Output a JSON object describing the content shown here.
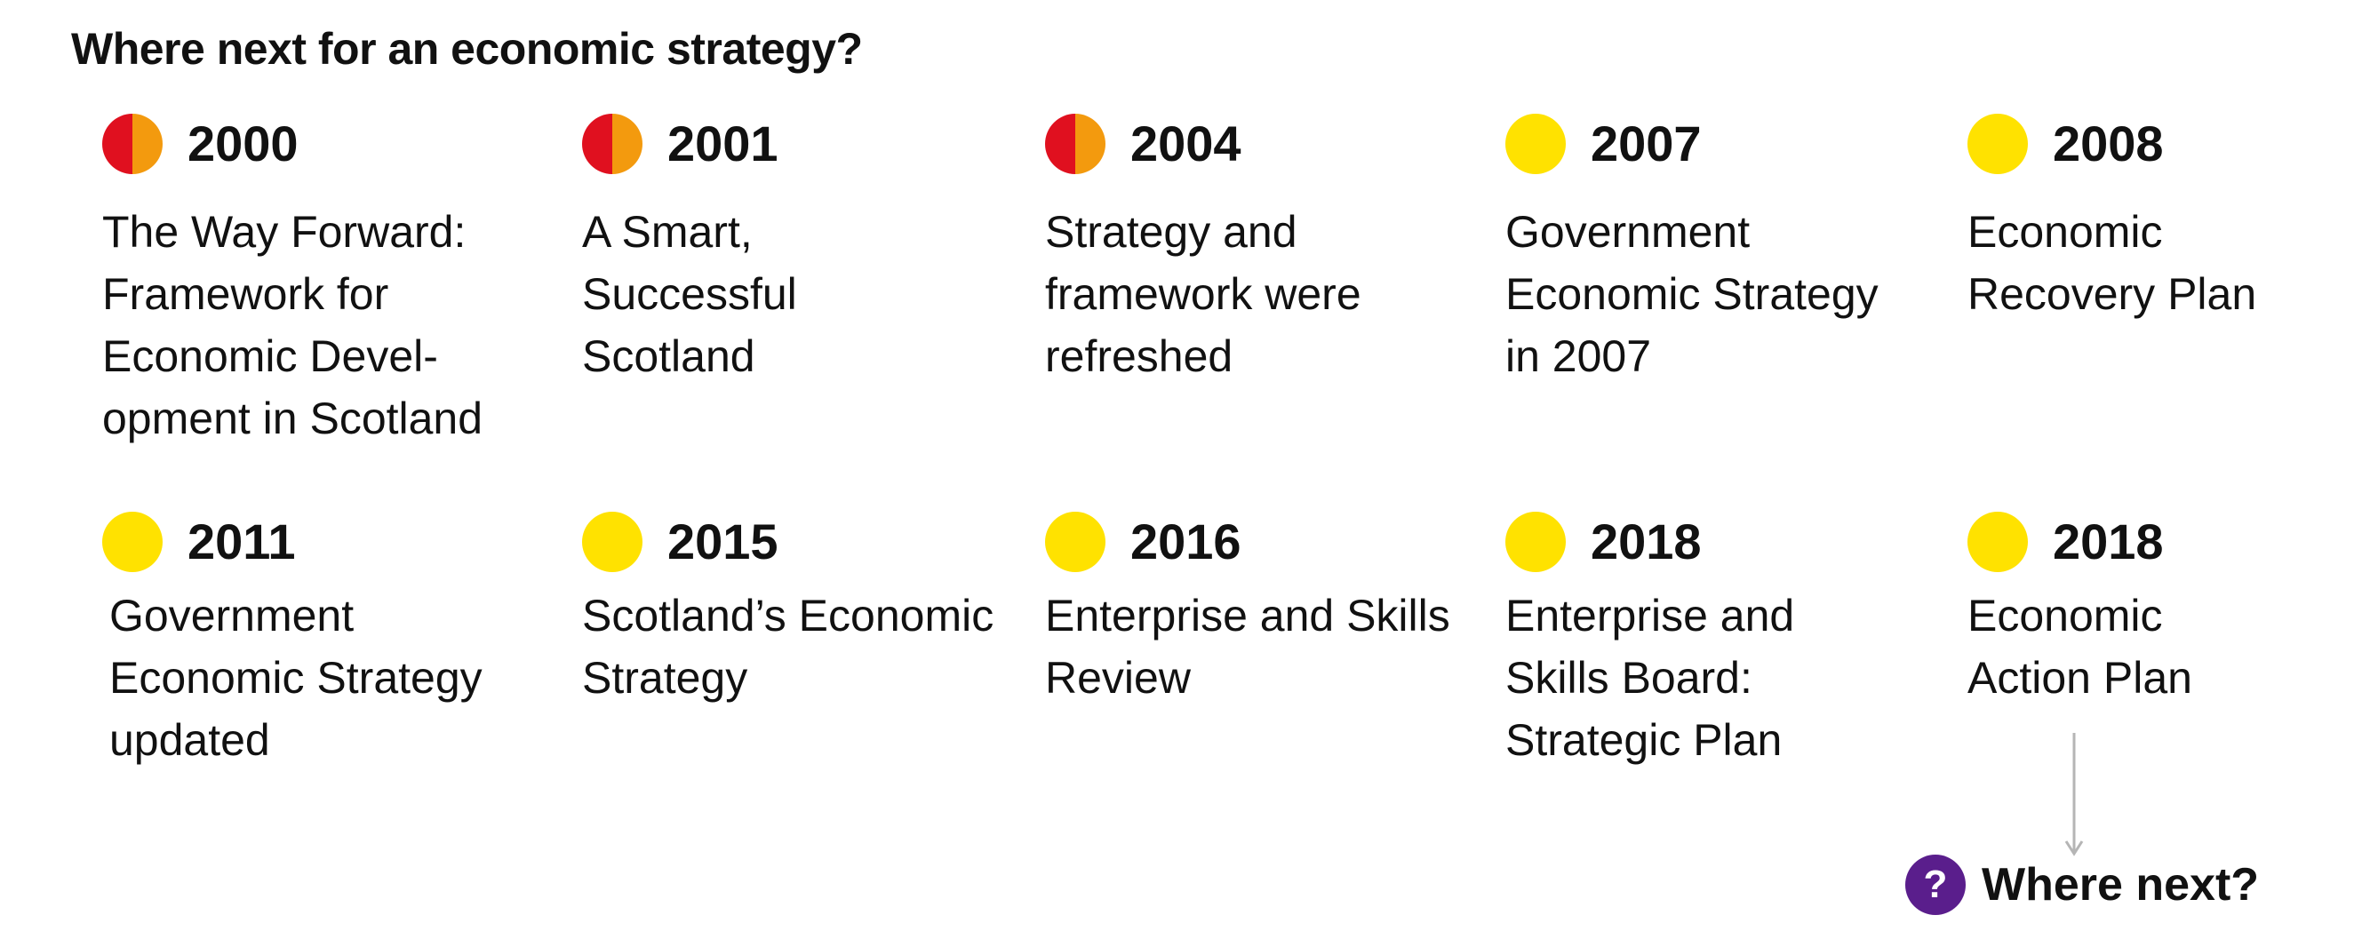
{
  "title": "Where next for an economic strategy?",
  "colors": {
    "red": "#e0101f",
    "orange": "#f39a0e",
    "yellow": "#ffe200",
    "purple": "#5a1e8c",
    "arrow": "#b5b5b5"
  },
  "row1": [
    {
      "year": "2000",
      "dot": "half",
      "text": "The Way Forward:\nFramework for\nEconomic Devel-\nopment in Scotland"
    },
    {
      "year": "2001",
      "dot": "half",
      "text": "A Smart,\nSuccessful\nScotland"
    },
    {
      "year": "2004",
      "dot": "half",
      "text": "Strategy and\nframework were\nrefreshed"
    },
    {
      "year": "2007",
      "dot": "full",
      "text": "Government\nEconomic Strategy\nin 2007"
    },
    {
      "year": "2008",
      "dot": "full",
      "text": "Economic\nRecovery Plan"
    }
  ],
  "row2": [
    {
      "year": "2011",
      "dot": "full",
      "text": "Government\nEconomic Strategy\nupdated"
    },
    {
      "year": "2015",
      "dot": "full",
      "text": "Scotland’s Economic\nStrategy"
    },
    {
      "year": "2016",
      "dot": "full",
      "text": "Enterprise and Skills\nReview"
    },
    {
      "year": "2018",
      "dot": "full",
      "text": "Enterprise and\nSkills Board:\nStrategic Plan"
    },
    {
      "year": "2018",
      "dot": "full",
      "text": "Economic\nAction Plan"
    }
  ],
  "next": {
    "icon": "question-icon",
    "symbol": "?",
    "label": "Where next?"
  }
}
